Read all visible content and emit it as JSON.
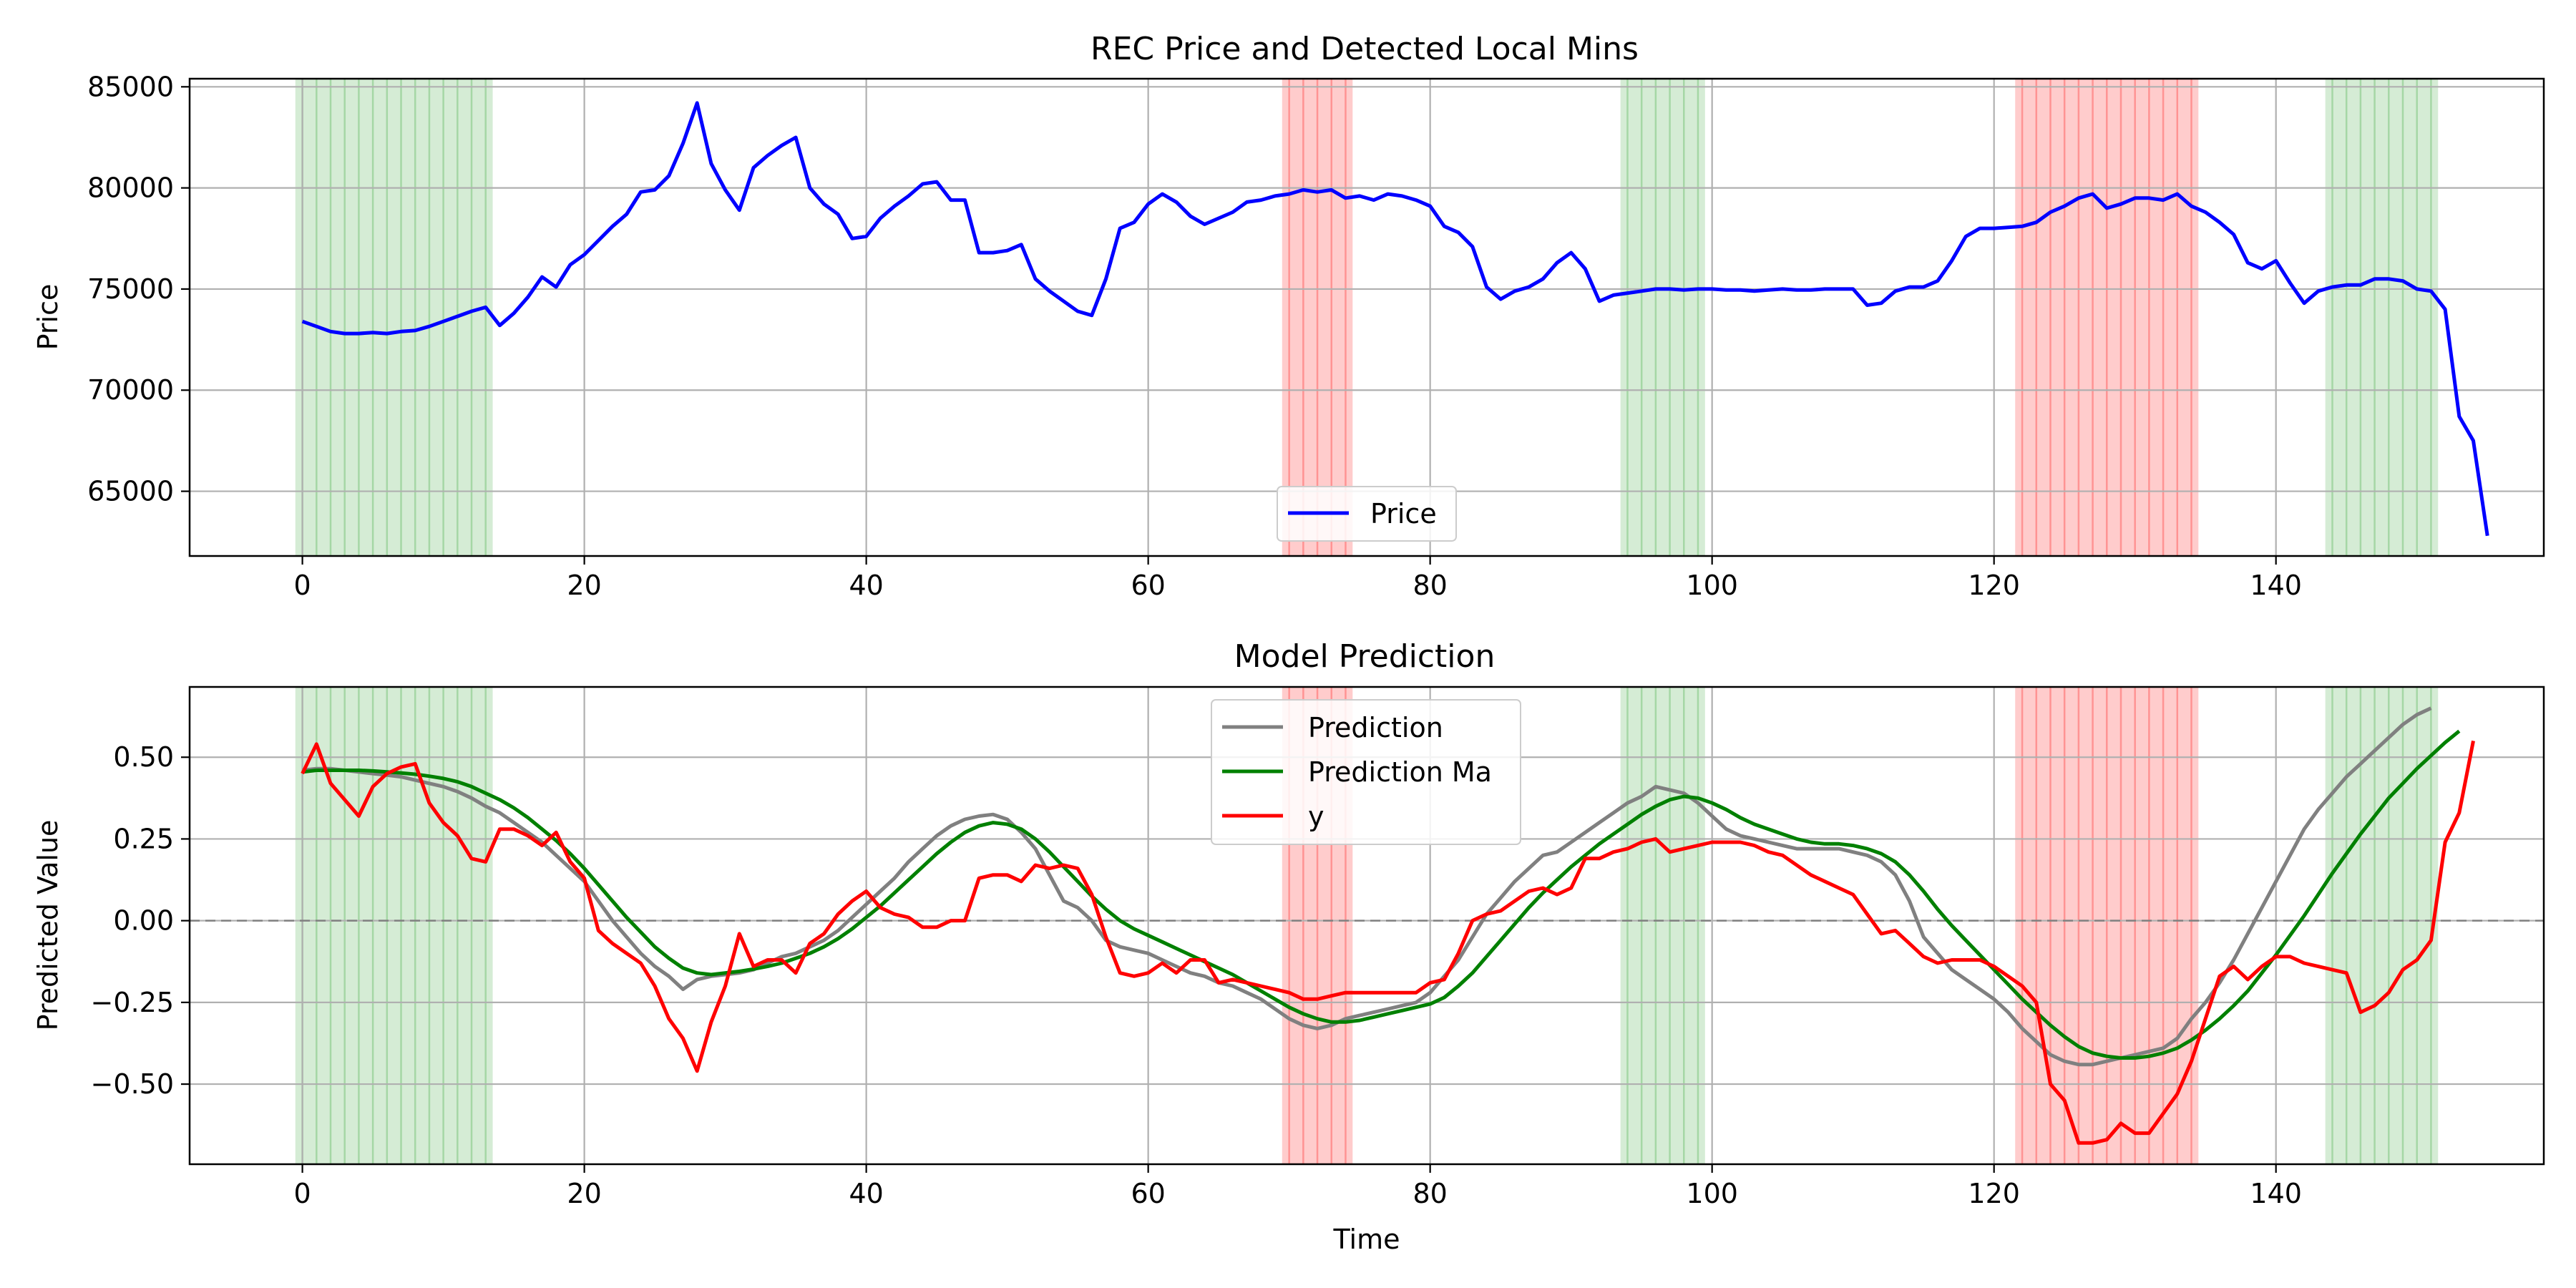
{
  "chart_data": [
    {
      "type": "line",
      "title": "REC Price and Detected Local Mins",
      "xlabel": "",
      "ylabel": "Price",
      "xlim": [
        -8,
        159
      ],
      "ylim": [
        61800,
        85400
      ],
      "xticks": [
        0,
        20,
        40,
        60,
        80,
        100,
        120,
        140
      ],
      "yticks": [
        65000,
        70000,
        75000,
        80000,
        85000
      ],
      "grid": true,
      "legend": "lower center",
      "series": [
        {
          "name": "Price",
          "color": "#0000ff",
          "x_start": 0,
          "values": [
            73400,
            73150,
            72900,
            72800,
            72800,
            72850,
            72800,
            72900,
            72950,
            73150,
            73400,
            73650,
            73900,
            74100,
            73200,
            73800,
            74600,
            75600,
            75100,
            76200,
            76700,
            77400,
            78100,
            78700,
            79800,
            79900,
            80600,
            82200,
            84200,
            81200,
            79900,
            78900,
            81000,
            81600,
            82100,
            82500,
            80000,
            79200,
            78700,
            77500,
            77600,
            78500,
            79100,
            79600,
            80200,
            80300,
            79400,
            79400,
            76800,
            76800,
            76900,
            77200,
            75500,
            74900,
            74400,
            73900,
            73700,
            75500,
            78000,
            78300,
            79200,
            79700,
            79300,
            78600,
            78200,
            78500,
            78800,
            79300,
            79400,
            79600,
            79700,
            79900,
            79800,
            79900,
            79500,
            79600,
            79400,
            79700,
            79600,
            79400,
            79100,
            78100,
            77800,
            77100,
            75100,
            74500,
            74900,
            75100,
            75500,
            76300,
            76800,
            76000,
            74400,
            74700,
            74800,
            74900,
            75000,
            75000,
            74950,
            75000,
            75000,
            74950,
            74950,
            74900,
            74950,
            75000,
            74950,
            74950,
            75000,
            75000,
            75000,
            74200,
            74300,
            74900,
            75100,
            75100,
            75400,
            76400,
            77600,
            78000,
            78000,
            78050,
            78100,
            78300,
            78800,
            79100,
            79500,
            79700,
            79000,
            79200,
            79500,
            79500,
            79400,
            79700,
            79100,
            78800,
            78300,
            77700,
            76300,
            76000,
            76400,
            75300,
            74300,
            74900,
            75100,
            75200,
            75200,
            75500,
            75500,
            75400,
            75000,
            74900,
            74000,
            68700,
            67500,
            62800
          ]
        }
      ],
      "highlight_bands": [
        {
          "color": "#2ca02c",
          "x": [
            -0.5,
            13.5
          ],
          "lines": [
            0,
            1,
            2,
            3,
            4,
            5,
            6,
            7,
            8,
            9,
            10,
            11,
            12,
            13
          ]
        },
        {
          "color": "#ff0000",
          "x": [
            69.5,
            74.5
          ],
          "lines": [
            70,
            71,
            72,
            73,
            74
          ]
        },
        {
          "color": "#2ca02c",
          "x": [
            93.5,
            99.5
          ],
          "lines": [
            94,
            95,
            96,
            97,
            98,
            99
          ]
        },
        {
          "color": "#ff0000",
          "x": [
            121.5,
            134.5
          ],
          "lines": [
            122,
            123,
            124,
            125,
            126,
            127,
            128,
            129,
            130,
            131,
            132,
            133,
            134
          ]
        },
        {
          "color": "#2ca02c",
          "x": [
            143.5,
            151.5
          ],
          "lines": [
            144,
            145,
            146,
            147,
            148,
            149,
            150,
            151
          ]
        }
      ]
    },
    {
      "type": "line",
      "title": "Model Prediction",
      "xlabel": "Time",
      "ylabel": "Predicted Value",
      "xlim": [
        -8,
        159
      ],
      "ylim": [
        -0.745,
        0.715
      ],
      "xticks": [
        0,
        20,
        40,
        60,
        80,
        100,
        120,
        140
      ],
      "xtick_labels": [
        "0",
        "20",
        "40",
        "60",
        "80",
        "100",
        "120",
        "140"
      ],
      "yticks": [
        -0.5,
        -0.25,
        0.0,
        0.25,
        0.5
      ],
      "ytick_labels": [
        "−0.50",
        "−0.25",
        "0.00",
        "0.25",
        "0.50"
      ],
      "hline": {
        "y": 0,
        "color": "#808080",
        "style": "dashed"
      },
      "grid": true,
      "legend": "upper center",
      "series": [
        {
          "name": "Prediction",
          "color": "#808080",
          "x_start": 0,
          "values": [
            0.46,
            0.465,
            0.465,
            0.46,
            0.455,
            0.45,
            0.445,
            0.44,
            0.43,
            0.42,
            0.41,
            0.395,
            0.375,
            0.35,
            0.33,
            0.3,
            0.27,
            0.24,
            0.2,
            0.16,
            0.12,
            0.06,
            0.0,
            -0.05,
            -0.1,
            -0.14,
            -0.17,
            -0.21,
            -0.18,
            -0.17,
            -0.165,
            -0.16,
            -0.15,
            -0.13,
            -0.11,
            -0.1,
            -0.08,
            -0.06,
            -0.03,
            0.01,
            0.05,
            0.09,
            0.13,
            0.18,
            0.22,
            0.26,
            0.29,
            0.31,
            0.32,
            0.325,
            0.31,
            0.27,
            0.22,
            0.14,
            0.06,
            0.04,
            0.0,
            -0.06,
            -0.08,
            -0.09,
            -0.1,
            -0.12,
            -0.14,
            -0.16,
            -0.17,
            -0.19,
            -0.2,
            -0.22,
            -0.24,
            -0.27,
            -0.3,
            -0.32,
            -0.33,
            -0.32,
            -0.3,
            -0.29,
            -0.28,
            -0.27,
            -0.26,
            -0.25,
            -0.22,
            -0.17,
            -0.12,
            -0.05,
            0.02,
            0.07,
            0.12,
            0.16,
            0.2,
            0.21,
            0.24,
            0.27,
            0.3,
            0.33,
            0.36,
            0.38,
            0.41,
            0.4,
            0.39,
            0.36,
            0.32,
            0.28,
            0.26,
            0.25,
            0.24,
            0.23,
            0.22,
            0.22,
            0.22,
            0.22,
            0.21,
            0.2,
            0.18,
            0.14,
            0.06,
            -0.05,
            -0.1,
            -0.15,
            -0.18,
            -0.21,
            -0.24,
            -0.28,
            -0.33,
            -0.37,
            -0.41,
            -0.43,
            -0.44,
            -0.44,
            -0.43,
            -0.42,
            -0.41,
            -0.4,
            -0.39,
            -0.36,
            -0.3,
            -0.25,
            -0.19,
            -0.12,
            -0.04,
            0.04,
            0.12,
            0.2,
            0.28,
            0.34,
            0.39,
            0.44,
            0.48,
            0.52,
            0.56,
            0.6,
            0.63,
            0.65
          ]
        },
        {
          "name": "Prediction Ma",
          "color": "#008000",
          "x_start": 0,
          "values": [
            0.455,
            0.46,
            0.46,
            0.46,
            0.46,
            0.458,
            0.455,
            0.452,
            0.448,
            0.442,
            0.435,
            0.425,
            0.41,
            0.39,
            0.37,
            0.345,
            0.315,
            0.28,
            0.245,
            0.205,
            0.16,
            0.11,
            0.06,
            0.01,
            -0.035,
            -0.08,
            -0.115,
            -0.145,
            -0.16,
            -0.165,
            -0.16,
            -0.155,
            -0.148,
            -0.14,
            -0.13,
            -0.115,
            -0.1,
            -0.08,
            -0.055,
            -0.025,
            0.01,
            0.045,
            0.085,
            0.125,
            0.165,
            0.205,
            0.24,
            0.27,
            0.29,
            0.3,
            0.295,
            0.28,
            0.25,
            0.21,
            0.165,
            0.12,
            0.075,
            0.035,
            0.0,
            -0.025,
            -0.045,
            -0.065,
            -0.085,
            -0.105,
            -0.125,
            -0.145,
            -0.165,
            -0.19,
            -0.215,
            -0.24,
            -0.265,
            -0.285,
            -0.3,
            -0.31,
            -0.31,
            -0.305,
            -0.295,
            -0.285,
            -0.275,
            -0.265,
            -0.255,
            -0.235,
            -0.2,
            -0.16,
            -0.11,
            -0.06,
            -0.01,
            0.04,
            0.085,
            0.125,
            0.165,
            0.2,
            0.235,
            0.265,
            0.295,
            0.325,
            0.35,
            0.37,
            0.38,
            0.375,
            0.36,
            0.34,
            0.315,
            0.295,
            0.28,
            0.265,
            0.25,
            0.24,
            0.235,
            0.235,
            0.23,
            0.22,
            0.205,
            0.18,
            0.14,
            0.09,
            0.035,
            -0.015,
            -0.06,
            -0.105,
            -0.15,
            -0.195,
            -0.24,
            -0.28,
            -0.32,
            -0.355,
            -0.385,
            -0.405,
            -0.415,
            -0.42,
            -0.42,
            -0.415,
            -0.405,
            -0.39,
            -0.365,
            -0.335,
            -0.3,
            -0.26,
            -0.215,
            -0.16,
            -0.105,
            -0.045,
            0.015,
            0.08,
            0.145,
            0.205,
            0.265,
            0.32,
            0.375,
            0.42,
            0.465,
            0.505,
            0.545,
            0.58
          ]
        },
        {
          "name": "y",
          "color": "#ff0000",
          "x_start": 0,
          "values": [
            0.45,
            0.54,
            0.42,
            0.37,
            0.32,
            0.41,
            0.45,
            0.47,
            0.48,
            0.36,
            0.3,
            0.26,
            0.19,
            0.18,
            0.28,
            0.28,
            0.26,
            0.23,
            0.27,
            0.18,
            0.13,
            -0.03,
            -0.07,
            -0.1,
            -0.13,
            -0.2,
            -0.3,
            -0.36,
            -0.46,
            -0.31,
            -0.2,
            -0.04,
            -0.14,
            -0.12,
            -0.12,
            -0.16,
            -0.07,
            -0.04,
            0.02,
            0.06,
            0.09,
            0.04,
            0.02,
            0.01,
            -0.02,
            -0.02,
            0.0,
            0.0,
            0.13,
            0.14,
            0.14,
            0.12,
            0.17,
            0.16,
            0.17,
            0.16,
            0.08,
            -0.05,
            -0.16,
            -0.17,
            -0.16,
            -0.13,
            -0.16,
            -0.12,
            -0.12,
            -0.19,
            -0.18,
            -0.19,
            -0.2,
            -0.21,
            -0.22,
            -0.24,
            -0.24,
            -0.23,
            -0.22,
            -0.22,
            -0.22,
            -0.22,
            -0.22,
            -0.22,
            -0.19,
            -0.18,
            -0.1,
            0.0,
            0.02,
            0.03,
            0.06,
            0.09,
            0.1,
            0.08,
            0.1,
            0.19,
            0.19,
            0.21,
            0.22,
            0.24,
            0.25,
            0.21,
            0.22,
            0.23,
            0.24,
            0.24,
            0.24,
            0.23,
            0.21,
            0.2,
            0.17,
            0.14,
            0.12,
            0.1,
            0.08,
            0.02,
            -0.04,
            -0.03,
            -0.07,
            -0.11,
            -0.13,
            -0.12,
            -0.12,
            -0.12,
            -0.14,
            -0.17,
            -0.2,
            -0.25,
            -0.5,
            -0.55,
            -0.68,
            -0.68,
            -0.67,
            -0.62,
            -0.65,
            -0.65,
            -0.59,
            -0.53,
            -0.43,
            -0.3,
            -0.17,
            -0.14,
            -0.18,
            -0.14,
            -0.11,
            -0.11,
            -0.13,
            -0.14,
            -0.15,
            -0.16,
            -0.28,
            -0.26,
            -0.22,
            -0.15,
            -0.12,
            -0.06,
            0.24,
            0.33,
            0.55
          ]
        }
      ],
      "highlight_bands": [
        {
          "color": "#2ca02c",
          "x": [
            -0.5,
            13.5
          ],
          "lines": [
            0,
            1,
            2,
            3,
            4,
            5,
            6,
            7,
            8,
            9,
            10,
            11,
            12,
            13
          ]
        },
        {
          "color": "#ff0000",
          "x": [
            69.5,
            74.5
          ],
          "lines": [
            70,
            71,
            72,
            73,
            74
          ]
        },
        {
          "color": "#2ca02c",
          "x": [
            93.5,
            99.5
          ],
          "lines": [
            94,
            95,
            96,
            97,
            98,
            99
          ]
        },
        {
          "color": "#ff0000",
          "x": [
            121.5,
            134.5
          ],
          "lines": [
            122,
            123,
            124,
            125,
            126,
            127,
            128,
            129,
            130,
            131,
            132,
            133,
            134
          ]
        },
        {
          "color": "#2ca02c",
          "x": [
            143.5,
            151.5
          ],
          "lines": [
            144,
            145,
            146,
            147,
            148,
            149,
            150,
            151
          ]
        }
      ]
    }
  ]
}
